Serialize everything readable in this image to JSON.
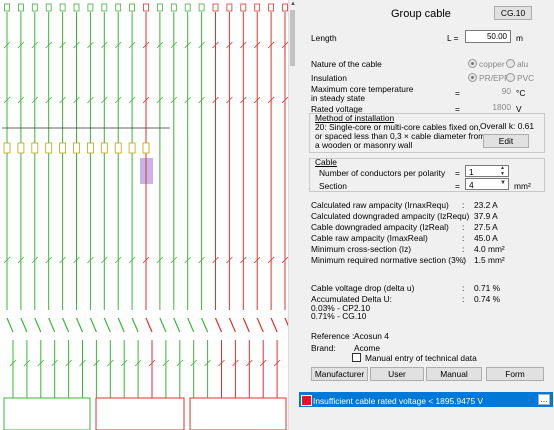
{
  "title": "Group cable",
  "ref_button": "CG.10",
  "length": {
    "label": "Length",
    "symbol": "L =",
    "value": "50.00",
    "unit": "m"
  },
  "nature": {
    "label": "Nature of the cable",
    "options": [
      {
        "label": "copper",
        "selected": true
      },
      {
        "label": "alu",
        "selected": false
      }
    ]
  },
  "insulation": {
    "label": "Insulation",
    "options": [
      {
        "label": "PR/EPR",
        "selected": true
      },
      {
        "label": "PVC",
        "selected": false
      }
    ]
  },
  "max_temp": {
    "label_line1": "Maximum core temperature",
    "label_line2": "in steady state",
    "eq": "=",
    "value": "90",
    "unit": "°C"
  },
  "rated_voltage": {
    "label": "Rated voltage",
    "eq": "=",
    "value": "1800",
    "unit": "V"
  },
  "installation": {
    "title": "Method of installation",
    "line1": "20: Single-core or multi-core cables fixed on,",
    "line2": "or spaced less than 0,3 × cable diameter from",
    "line3": "a wooden or masonry wall",
    "overall_label": "Overall k: 0.61",
    "edit_button": "Edit"
  },
  "cable": {
    "title": "Cable",
    "conductors_label": "Number of conductors per polarity",
    "conductors_eq": "=",
    "conductors_value": "1",
    "section_label": "Section",
    "section_eq": "=",
    "section_value": "4",
    "section_unit": "mm²"
  },
  "results": [
    {
      "label": "Calculated raw ampacity (IrnaxRequ)",
      "sep": ":",
      "value": "23.2 A"
    },
    {
      "label": "Calculated downgraded ampacity (IzRequ)",
      "sep": ":",
      "value": "37.9 A"
    },
    {
      "label": "Cable downgraded ampacity (IzReal)",
      "sep": ":",
      "value": "27.5 A"
    },
    {
      "label": "Cable raw ampacity (ImaxReal)",
      "sep": ":",
      "value": "45.0 A"
    },
    {
      "label": "Minimum cross-section (Iz)",
      "sep": ":",
      "value": "4.0 mm²"
    },
    {
      "label": "Minimum required normative section (3%)",
      "sep": ":",
      "value": "1.5 mm²"
    }
  ],
  "voltage_drop": {
    "label": "Cable voltage drop (delta u)",
    "sep": ":",
    "value": "0.71 %"
  },
  "accum": {
    "label": "Accumulated Delta U:",
    "sep": ":",
    "value": "0.74 %",
    "line1": "0.03% - CP2.10",
    "line2": "0.71% - CG.10"
  },
  "reference": {
    "label": "Reference :",
    "value": "Acosun 4"
  },
  "brand": {
    "label": "Brand:",
    "value": "Acome"
  },
  "manual_entry": {
    "label": "Manual entry of technical data",
    "checked": false
  },
  "buttons": {
    "manufacturer": "Manufacturer",
    "user": "User",
    "manual": "Manual",
    "form": "Form"
  },
  "status": {
    "text": "Insufficient cable rated voltage < 1895.9475 V",
    "more": "...",
    "color": "#0078d7",
    "indicator": "#e81123"
  },
  "diagram": {
    "green": "#3cb43c",
    "red": "#e0322d",
    "highlight": "#c8b4e6"
  }
}
